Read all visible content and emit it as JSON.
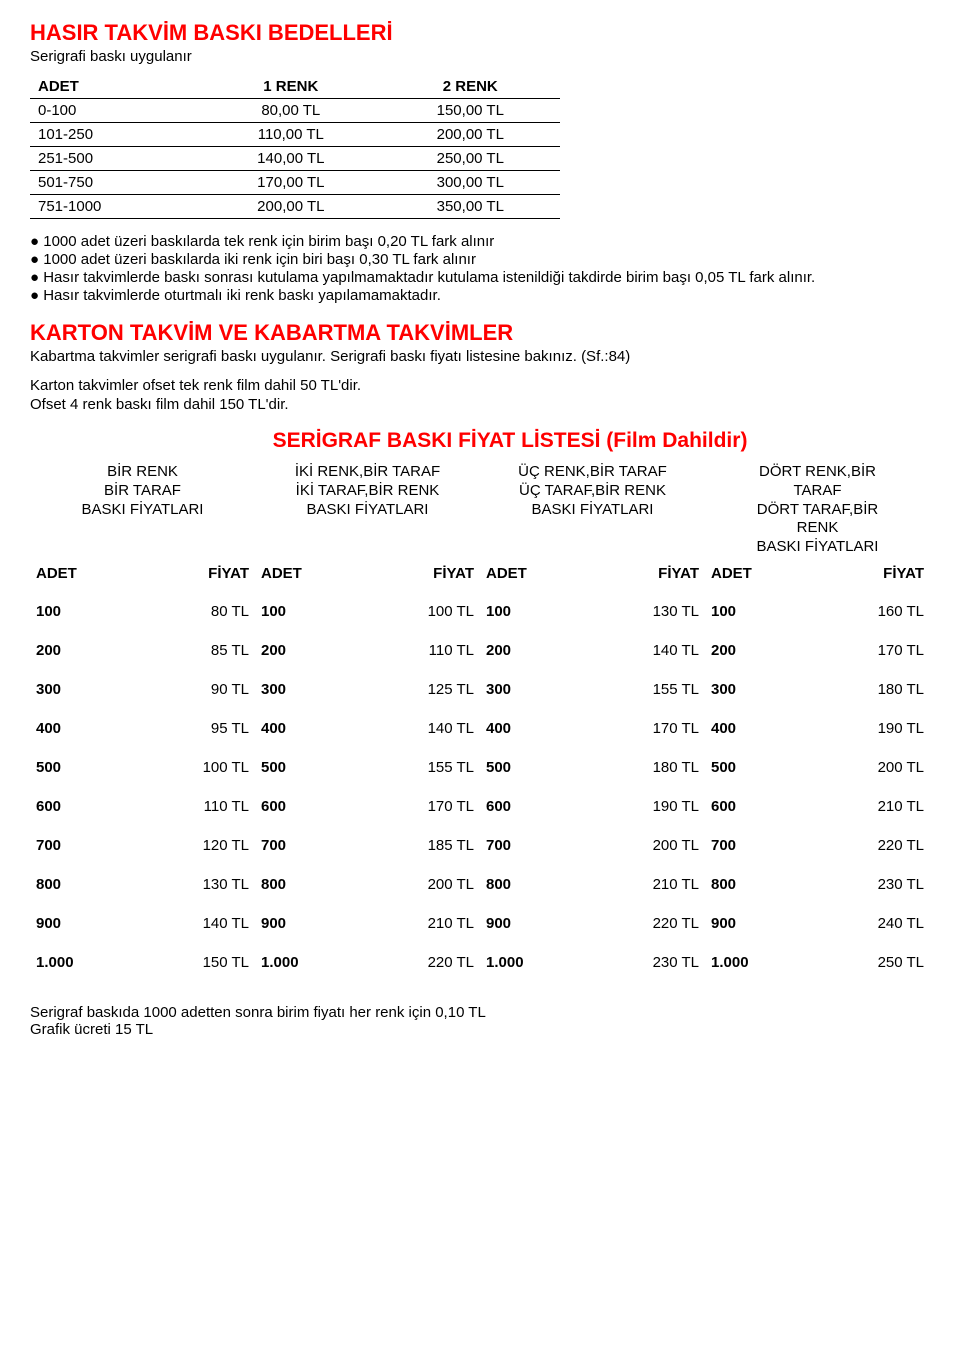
{
  "section1": {
    "title": "HASIR TAKVİM BASKI BEDELLERİ",
    "subtitle": "Serigrafi baskı uygulanır",
    "table": {
      "headers": [
        "ADET",
        "1 RENK",
        "2 RENK"
      ],
      "rows": [
        [
          "0-100",
          "80,00 TL",
          "150,00 TL"
        ],
        [
          "101-250",
          "110,00 TL",
          "200,00 TL"
        ],
        [
          "251-500",
          "140,00 TL",
          "250,00 TL"
        ],
        [
          "501-750",
          "170,00 TL",
          "300,00 TL"
        ],
        [
          "751-1000",
          "200,00 TL",
          "350,00 TL"
        ]
      ]
    },
    "bullets": [
      "1000 adet üzeri baskılarda tek renk için birim başı 0,20 TL fark alınır",
      "1000 adet üzeri baskılarda iki renk için biri başı 0,30 TL fark alınır",
      "Hasır takvimlerde baskı sonrası kutulama yapılmamaktadır kutulama istenildiği takdirde birim başı 0,05 TL fark alınır.",
      "Hasır takvimlerde oturtmalı iki renk baskı yapılamamaktadır."
    ]
  },
  "section2": {
    "title": "KARTON TAKVİM VE KABARTMA TAKVİMLER",
    "line1": "Kabartma takvimler serigrafi baskı uygulanır. Serigrafi baskı fiyatı listesine bakınız. (Sf.:84)",
    "line2": "Karton takvimler ofset tek renk film dahil 50 TL'dir.",
    "line3": "Ofset 4 renk baskı film dahil 150 TL'dir."
  },
  "section3": {
    "title": "SERİGRAF BASKI FİYAT LİSTESİ (Film Dahildir)",
    "groups": [
      {
        "l1": "BİR RENK",
        "l2": "BİR TARAF",
        "l3": "BASKI FİYATLARI"
      },
      {
        "l1": "İKİ RENK,BİR TARAF",
        "l2": "İKİ TARAF,BİR RENK",
        "l3": "BASKI FİYATLARI"
      },
      {
        "l1": "ÜÇ RENK,BİR TARAF",
        "l2": "ÜÇ TARAF,BİR RENK",
        "l3": "BASKI FİYATLARI"
      },
      {
        "l1": "DÖRT RENK,BİR",
        "l2": "TARAF",
        "l3": "DÖRT TARAF,BİR",
        "l4": "RENK",
        "l5": "BASKI FİYATLARI"
      }
    ],
    "col_labels": {
      "adet": "ADET",
      "fiyat": "FİYAT"
    },
    "rows": [
      {
        "adet": "100",
        "p": [
          "80 TL",
          "100 TL",
          "130 TL",
          "160 TL"
        ]
      },
      {
        "adet": "200",
        "p": [
          "85 TL",
          "110 TL",
          "140 TL",
          "170 TL"
        ]
      },
      {
        "adet": "300",
        "p": [
          "90 TL",
          "125 TL",
          "155 TL",
          "180 TL"
        ]
      },
      {
        "adet": "400",
        "p": [
          "95 TL",
          "140 TL",
          "170 TL",
          "190 TL"
        ]
      },
      {
        "adet": "500",
        "p": [
          "100 TL",
          "155 TL",
          "180 TL",
          "200 TL"
        ]
      },
      {
        "adet": "600",
        "p": [
          "110 TL",
          "170 TL",
          "190 TL",
          "210 TL"
        ]
      },
      {
        "adet": "700",
        "p": [
          "120 TL",
          "185 TL",
          "200 TL",
          "220 TL"
        ]
      },
      {
        "adet": "800",
        "p": [
          "130 TL",
          "200 TL",
          "210 TL",
          "230 TL"
        ]
      },
      {
        "adet": "900",
        "p": [
          "140 TL",
          "210 TL",
          "220 TL",
          "240 TL"
        ]
      },
      {
        "adet": "1.000",
        "p": [
          "150 TL",
          "220 TL",
          "230 TL",
          "250 TL"
        ]
      }
    ]
  },
  "footer": {
    "line1": "Serigraf baskıda 1000 adetten sonra birim fiyatı her renk için 0,10 TL",
    "line2": "Grafik ücreti 15 TL"
  }
}
